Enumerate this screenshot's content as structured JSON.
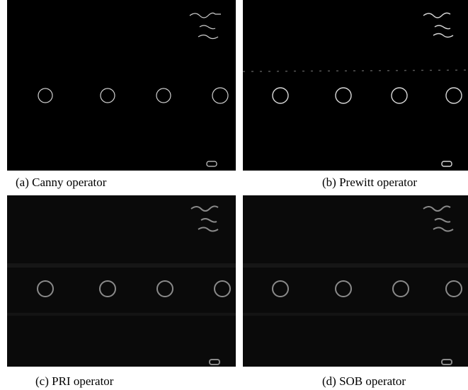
{
  "panels": [
    {
      "caption": "(a) Canny operator"
    },
    {
      "caption": "(b) Prewitt operator"
    },
    {
      "caption": "(c) PRI operator"
    },
    {
      "caption": "(d) SOB operator"
    }
  ]
}
